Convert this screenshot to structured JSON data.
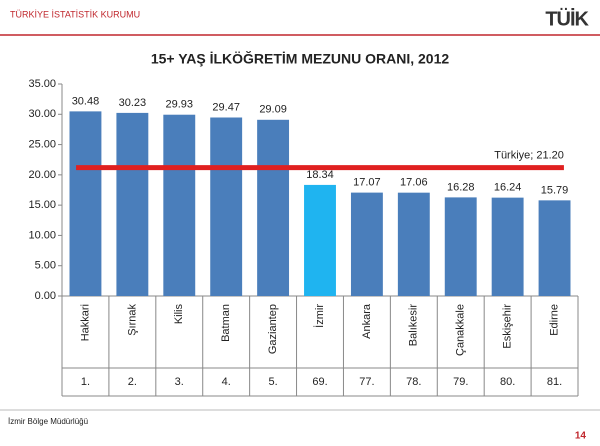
{
  "header": {
    "organization": "TÜRKİYE İSTATİSTİK KURUMU",
    "logo": "TÜİK"
  },
  "chart_data": {
    "type": "bar",
    "title": "15+ YAŞ İLKÖĞRETİM MEZUNU ORANI, 2012",
    "categories": [
      "Hakkari",
      "Şırnak",
      "Kilis",
      "Batman",
      "Gaziantep",
      "İzmir",
      "Ankara",
      "Balıkesir",
      "Çanakkale",
      "Eskişehir",
      "Edirne"
    ],
    "ranks": [
      "1.",
      "2.",
      "3.",
      "4.",
      "5.",
      "69.",
      "77.",
      "78.",
      "79.",
      "80.",
      "81."
    ],
    "values": [
      30.48,
      30.23,
      29.93,
      29.47,
      29.09,
      18.34,
      17.07,
      17.06,
      16.28,
      16.24,
      15.79
    ],
    "colors": [
      "#4a7ebb",
      "#4a7ebb",
      "#4a7ebb",
      "#4a7ebb",
      "#4a7ebb",
      "#1fb4f0",
      "#4a7ebb",
      "#4a7ebb",
      "#4a7ebb",
      "#4a7ebb",
      "#4a7ebb"
    ],
    "reference": {
      "value": 21.2,
      "label": "Türkiye; 21.20",
      "color": "#e02020"
    },
    "ylim": [
      0,
      35
    ],
    "yticks": [
      {
        "value": 0,
        "label": "0.00"
      },
      {
        "value": 5,
        "label": "5.00"
      },
      {
        "value": 10,
        "label": "10.00"
      },
      {
        "value": 15,
        "label": "15.00"
      },
      {
        "value": 20,
        "label": "20.00"
      },
      {
        "value": 25,
        "label": "25.00"
      },
      {
        "value": 30,
        "label": "30.00"
      },
      {
        "value": 35,
        "label": "35.00"
      }
    ]
  },
  "footer": {
    "office": "İzmir Bölge Müdürlüğü",
    "page": "14"
  }
}
